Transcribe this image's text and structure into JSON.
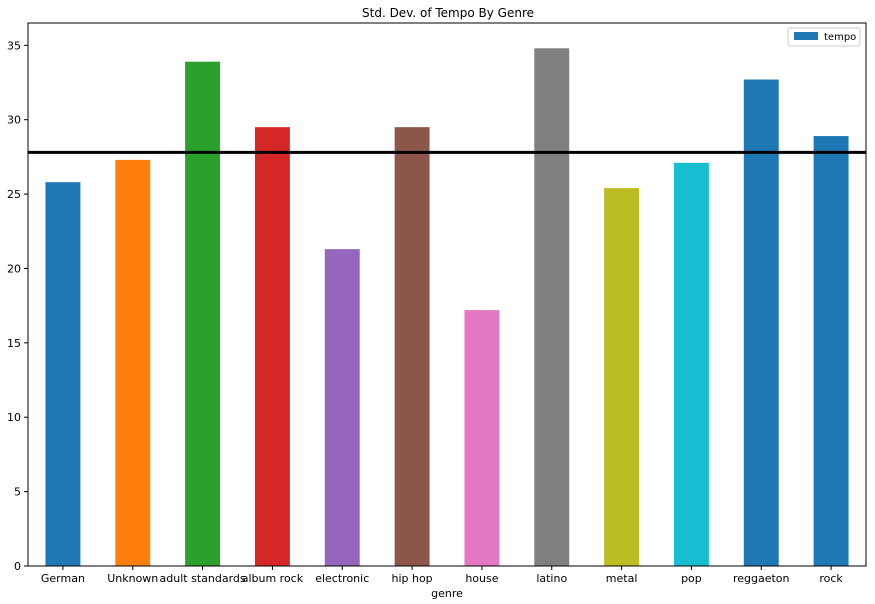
{
  "chart_data": {
    "type": "bar",
    "title": "Std. Dev. of Tempo By Genre",
    "xlabel": "genre",
    "ylabel": "",
    "categories": [
      "German",
      "Unknown",
      "adult standards",
      "album rock",
      "electronic",
      "hip hop",
      "house",
      "latino",
      "metal",
      "pop",
      "reggaeton",
      "rock"
    ],
    "series": [
      {
        "name": "tempo",
        "values": [
          25.8,
          27.3,
          33.9,
          29.5,
          21.3,
          29.5,
          17.2,
          34.8,
          25.4,
          27.1,
          32.7,
          28.9
        ]
      }
    ],
    "bar_colors": [
      "#1f77b4",
      "#ff7f0e",
      "#2ca02c",
      "#d62728",
      "#9467bd",
      "#8c564b",
      "#e377c2",
      "#7f7f7f",
      "#bcbd22",
      "#17becf",
      "#1f77b4",
      "#1f77b4"
    ],
    "legend_color": "#1f77b4",
    "reference_line": {
      "y": 27.8,
      "color": "#000000"
    },
    "ylim": [
      0,
      36.5
    ],
    "yticks": [
      0,
      5,
      10,
      15,
      20,
      25,
      30,
      35
    ],
    "grid": false,
    "legend_position": "top-right"
  }
}
